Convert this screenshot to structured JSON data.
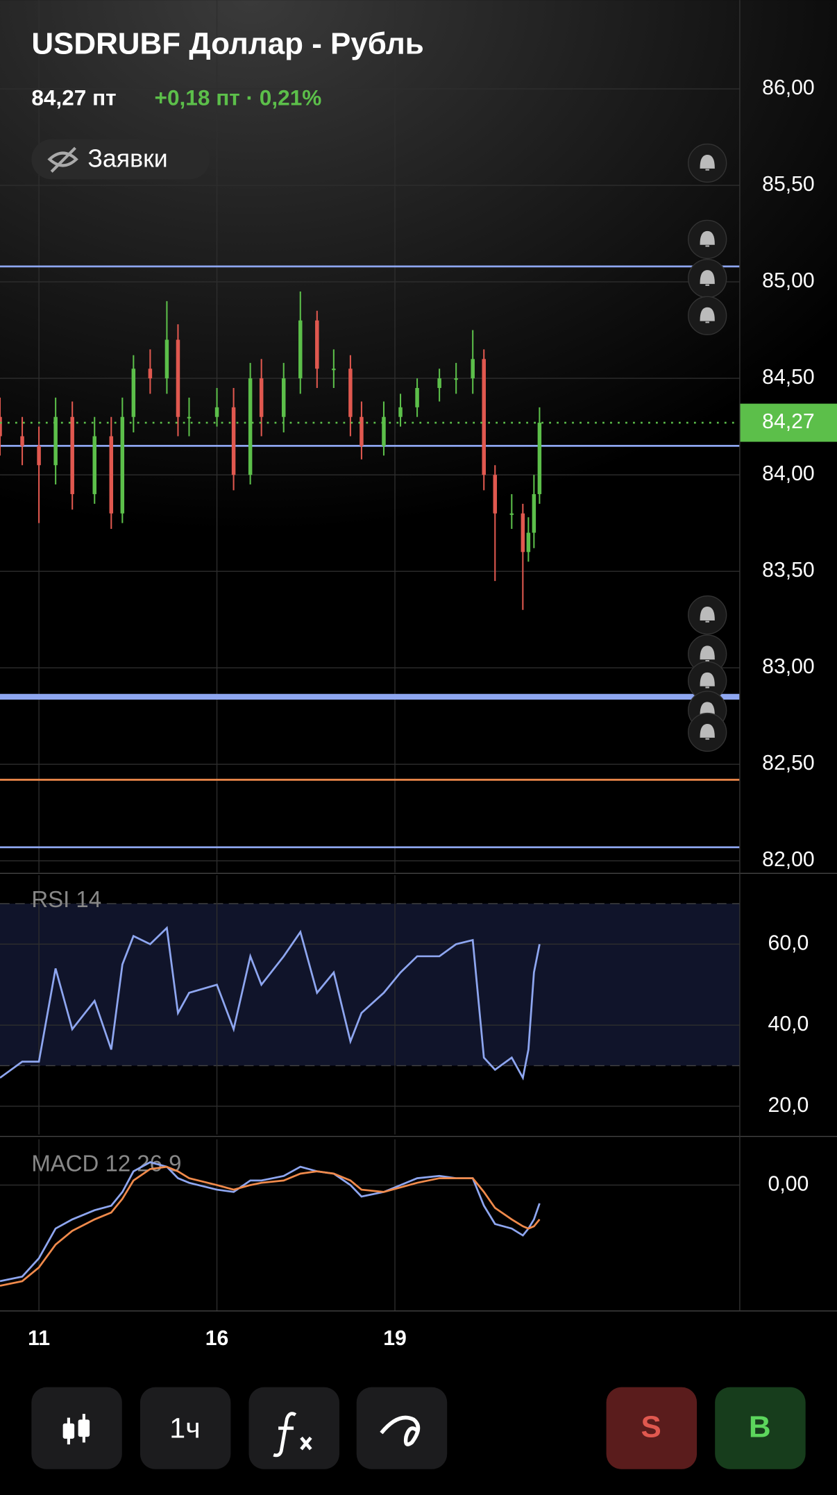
{
  "header": {
    "title": "USDRUBF Доллар - Рубль",
    "price": "84,27 пт",
    "change": "+0,18 пт · 0,21%",
    "orders_button": "Заявки"
  },
  "chart_data": [
    {
      "type": "candlestick",
      "xlim": [
        0,
        133
      ],
      "ylim": [
        81.94,
        86.46
      ],
      "xticks": [
        {
          "value": 7,
          "label": "11"
        },
        {
          "value": 39,
          "label": "16"
        },
        {
          "value": 71,
          "label": "19"
        }
      ],
      "yticks": [
        {
          "value": 86,
          "label": "86,00"
        },
        {
          "value": 85.5,
          "label": "85,50"
        },
        {
          "value": 85,
          "label": "85,00"
        },
        {
          "value": 84.5,
          "label": "84,50"
        },
        {
          "value": 84,
          "label": "84,00"
        },
        {
          "value": 83.5,
          "label": "83,50"
        },
        {
          "value": 83,
          "label": "83,00"
        },
        {
          "value": 82.5,
          "label": "82,50"
        },
        {
          "value": 82,
          "label": "82,00"
        }
      ],
      "up_color": "#5cbf4a",
      "down_color": "#e0584f",
      "x": [
        0,
        4,
        7,
        10,
        13,
        17,
        20,
        22,
        24,
        27,
        30,
        32,
        34,
        39,
        42,
        45,
        47,
        51,
        54,
        57,
        60,
        63,
        65,
        69,
        72,
        75,
        79,
        82,
        85,
        87,
        89,
        92,
        94,
        95,
        96,
        97
      ],
      "open": [
        84.3,
        84.2,
        84.15,
        84.05,
        84.3,
        83.9,
        84.2,
        83.8,
        84.3,
        84.55,
        84.5,
        84.7,
        84.3,
        84.3,
        84.35,
        84.0,
        84.5,
        84.3,
        84.5,
        84.8,
        84.55,
        84.55,
        84.3,
        84.15,
        84.3,
        84.35,
        84.45,
        84.5,
        84.5,
        84.6,
        84.0,
        83.8,
        83.8,
        83.6,
        83.7,
        83.9
      ],
      "high": [
        84.4,
        84.3,
        84.25,
        84.4,
        84.38,
        84.3,
        84.3,
        84.4,
        84.62,
        84.65,
        84.9,
        84.78,
        84.4,
        84.45,
        84.45,
        84.58,
        84.6,
        84.58,
        84.95,
        84.85,
        84.65,
        84.62,
        84.38,
        84.38,
        84.42,
        84.5,
        84.55,
        84.58,
        84.75,
        84.65,
        84.05,
        83.9,
        83.85,
        83.78,
        84.0,
        84.35
      ],
      "low": [
        84.1,
        84.05,
        83.75,
        83.95,
        83.82,
        83.85,
        83.72,
        83.75,
        84.22,
        84.42,
        84.42,
        84.2,
        84.2,
        84.25,
        83.92,
        83.95,
        84.2,
        84.22,
        84.42,
        84.45,
        84.45,
        84.2,
        84.08,
        84.1,
        84.25,
        84.3,
        84.38,
        84.42,
        84.42,
        83.92,
        83.45,
        83.72,
        83.3,
        83.55,
        83.62,
        83.85
      ],
      "close": [
        84.2,
        84.15,
        84.05,
        84.3,
        83.9,
        84.2,
        83.8,
        84.3,
        84.55,
        84.5,
        84.7,
        84.3,
        84.3,
        84.35,
        84.0,
        84.5,
        84.3,
        84.5,
        84.8,
        84.55,
        84.55,
        84.3,
        84.15,
        84.3,
        84.35,
        84.45,
        84.5,
        84.5,
        84.6,
        84.0,
        83.8,
        83.8,
        83.6,
        83.7,
        83.9,
        84.27
      ],
      "levels": [
        {
          "value": 85.08,
          "color": "#8ea6f0"
        },
        {
          "value": 84.15,
          "color": "#8ea6f0"
        },
        {
          "value": 82.85,
          "color": "#8ea6f0"
        },
        {
          "value": 82.42,
          "color": "#f08a4b"
        },
        {
          "value": 82.07,
          "color": "#8ea6f0"
        }
      ],
      "current": {
        "value": 84.27,
        "label": "84,27"
      },
      "current_color": "#5cbf4a"
    },
    {
      "type": "line",
      "title": "RSI 14",
      "xlim": [
        0,
        133
      ],
      "ylim": [
        13,
        77
      ],
      "yticks": [
        {
          "value": 60,
          "label": "60,0"
        },
        {
          "value": 40,
          "label": "40,0"
        },
        {
          "value": 20,
          "label": "20,0"
        }
      ],
      "band": [
        30,
        70
      ],
      "x": [
        0,
        4,
        7,
        10,
        13,
        17,
        20,
        22,
        24,
        27,
        30,
        32,
        34,
        39,
        42,
        45,
        47,
        51,
        54,
        57,
        60,
        63,
        65,
        69,
        72,
        75,
        79,
        82,
        85,
        87,
        89,
        92,
        94,
        95,
        96,
        97
      ],
      "series": [
        {
          "color": "#8ea6f0",
          "values": [
            27,
            31,
            31,
            54,
            39,
            46,
            34,
            55,
            62,
            60,
            64,
            43,
            48,
            50,
            39,
            57,
            50,
            57,
            63,
            48,
            53,
            36,
            43,
            48,
            53,
            57,
            57,
            60,
            61,
            32,
            29,
            32,
            27,
            34,
            53,
            60
          ]
        }
      ]
    },
    {
      "type": "line",
      "title": "MACD 12 26 9",
      "xlim": [
        0,
        133
      ],
      "ylim": [
        -0.55,
        0.2
      ],
      "yticks": [
        {
          "value": 0,
          "label": "0,00"
        }
      ],
      "x": [
        0,
        4,
        7,
        10,
        13,
        17,
        20,
        22,
        24,
        27,
        30,
        32,
        34,
        39,
        42,
        45,
        47,
        51,
        54,
        57,
        60,
        63,
        65,
        69,
        72,
        75,
        79,
        82,
        85,
        87,
        89,
        92,
        94,
        95,
        96,
        97
      ],
      "series": [
        {
          "color": "#8ea6f0",
          "values": [
            -0.42,
            -0.4,
            -0.32,
            -0.19,
            -0.15,
            -0.11,
            -0.09,
            -0.03,
            0.06,
            0.1,
            0.08,
            0.03,
            0.01,
            -0.02,
            -0.03,
            0.02,
            0.02,
            0.04,
            0.08,
            0.06,
            0.05,
            0,
            -0.05,
            -0.03,
            0,
            0.03,
            0.04,
            0.03,
            0.03,
            -0.09,
            -0.17,
            -0.19,
            -0.22,
            -0.19,
            -0.15,
            -0.08
          ]
        },
        {
          "color": "#f08a4b",
          "values": [
            -0.44,
            -0.42,
            -0.36,
            -0.26,
            -0.2,
            -0.15,
            -0.12,
            -0.06,
            0.02,
            0.07,
            0.08,
            0.06,
            0.03,
            0,
            -0.02,
            0,
            0.01,
            0.02,
            0.05,
            0.06,
            0.05,
            0.02,
            -0.02,
            -0.03,
            -0.01,
            0.01,
            0.03,
            0.03,
            0.03,
            -0.03,
            -0.1,
            -0.15,
            -0.18,
            -0.19,
            -0.18,
            -0.15
          ]
        }
      ]
    }
  ],
  "toolbar": {
    "interval": "1ч",
    "sell": "S",
    "buy": "B"
  }
}
